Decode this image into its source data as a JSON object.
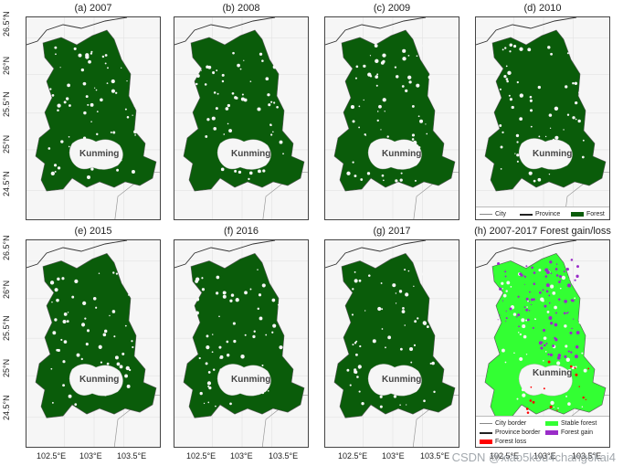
{
  "panels": [
    {
      "title": "(a) 2007",
      "city": "Kunming"
    },
    {
      "title": "(b) 2008",
      "city": "Kunming"
    },
    {
      "title": "(c) 2009",
      "city": "Kunming"
    },
    {
      "title": "(d) 2010",
      "city": "Kunming"
    },
    {
      "title": "(e) 2015",
      "city": "Kunming"
    },
    {
      "title": "(f) 2016",
      "city": "Kunming"
    },
    {
      "title": "(g) 2017",
      "city": "Kunming"
    },
    {
      "title": "(h) 2007-2017 Forest gain/loss",
      "city": "Kunming"
    }
  ],
  "y_ticks": [
    "26.5°N",
    "26°N",
    "25.5°N",
    "25°N",
    "24.5°N"
  ],
  "x_ticks": [
    "102.5°E",
    "103°E",
    "103.5°E"
  ],
  "legend_d": {
    "city": "City",
    "province": "Province",
    "forest": "Forest"
  },
  "legend_h": {
    "city_border": "City border",
    "province_border": "Province border",
    "forest_loss": "Forest loss",
    "stable_forest": "Stable forest",
    "forest_gain": "Forest gain"
  },
  "colors": {
    "forest": "#0a5c0a",
    "stable_forest": "#33ff33",
    "forest_gain": "#9a2cc8",
    "forest_loss": "#ff0000"
  },
  "watermark": "CSDN @xiao5kou4chang6kai4"
}
